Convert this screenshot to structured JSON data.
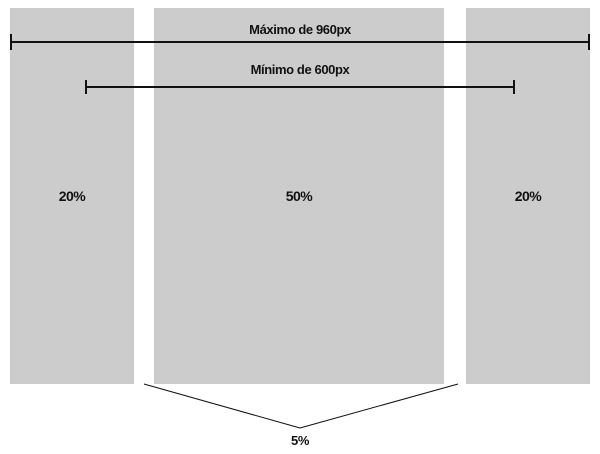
{
  "labels": {
    "max_width": "Máximo de 960px",
    "min_width": "Mínimo de 600px",
    "gap": "5%"
  },
  "columns": [
    {
      "label": "20%"
    },
    {
      "label": "50%"
    },
    {
      "label": "20%"
    }
  ],
  "colors": {
    "column_fill": "#cccccc",
    "line": "#111111",
    "background": "#ffffff"
  }
}
